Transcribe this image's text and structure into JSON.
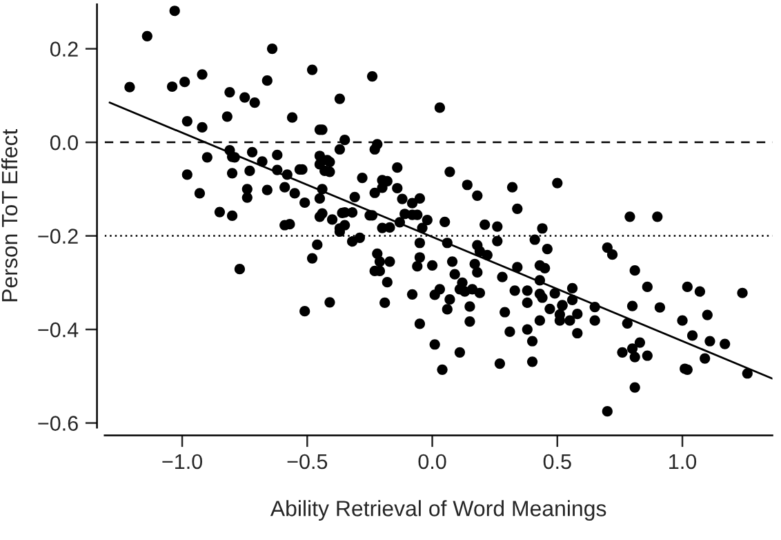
{
  "chart_data": {
    "type": "scatter",
    "xlabel": "Ability Retrieval of Word Meanings",
    "ylabel": "Person ToT Effect",
    "xlim": [
      -1.31,
      1.36
    ],
    "ylim": [
      -0.61,
      0.295
    ],
    "xticks": [
      {
        "value": -1.0,
        "label": "−1.0"
      },
      {
        "value": -0.5,
        "label": "−0.5"
      },
      {
        "value": 0.0,
        "label": "0.0"
      },
      0.5,
      {
        "value": 1.0,
        "label": "1.0"
      }
    ],
    "yticks": [
      {
        "value": -0.6,
        "label": "−0.6"
      },
      {
        "value": -0.4,
        "label": "−0.4"
      },
      {
        "value": -0.2,
        "label": "−0.2"
      },
      {
        "value": 0.0,
        "label": "0.0"
      },
      0.2
    ],
    "grid": false,
    "marker": "circle",
    "ref_lines": [
      {
        "axis": "y",
        "value": 0.0,
        "line_style": "dashed",
        "color": "#000000"
      },
      {
        "axis": "y",
        "value": -0.2,
        "line_style": "dotted",
        "color": "#000000"
      }
    ],
    "series": [
      {
        "color": "#000000",
        "x": [
          -1.21,
          -1.14,
          -1.03,
          -1.04,
          -0.99,
          -0.92,
          -0.98,
          -0.92,
          -0.81,
          -0.82,
          -0.75,
          -0.71,
          -0.64,
          -0.66,
          -0.48,
          -0.56,
          -0.45,
          -0.44,
          -0.37,
          -0.37,
          -0.9,
          -0.98,
          -0.93,
          -0.85,
          -0.8,
          -0.81,
          -0.8,
          -0.79,
          -0.72,
          -0.8,
          -0.73,
          -0.68,
          -0.62,
          -0.62,
          -0.58,
          -0.53,
          -0.52,
          -0.74,
          -0.74,
          -0.66,
          -0.59,
          -0.55,
          -0.51,
          -0.45,
          -0.42,
          -0.45,
          -0.43,
          -0.44,
          -0.45,
          -0.44,
          -0.45,
          -0.4,
          -0.59,
          -0.57,
          -0.36,
          -0.37,
          -0.24,
          0.03,
          -0.35,
          -0.22,
          -0.23,
          -0.41,
          -0.41,
          -0.14,
          -0.28,
          -0.2,
          -0.18,
          -0.2,
          -0.23,
          -0.14,
          -0.12,
          -0.08,
          -0.05,
          -0.31,
          -0.35,
          -0.32,
          -0.25,
          -0.24,
          -0.11,
          -0.08,
          -0.06,
          -0.02,
          -0.35,
          -0.37,
          -0.2,
          -0.17,
          -0.13,
          -0.04,
          0.05,
          0.07,
          0.14,
          0.18,
          0.32,
          0.34,
          0.21,
          0.26,
          0.5,
          0.44,
          -0.32,
          -0.29,
          -0.22,
          -0.21,
          -0.17,
          -0.23,
          -0.21,
          -0.18,
          -0.19,
          -0.05,
          -0.05,
          -0.06,
          -0.08,
          -0.05,
          0.0,
          0.06,
          0.08,
          0.09,
          0.12,
          0.11,
          0.13,
          0.16,
          0.19,
          0.03,
          0.01,
          0.07,
          0.06,
          0.15,
          0.15,
          0.01,
          0.11,
          0.04,
          0.18,
          0.19,
          0.22,
          0.17,
          0.18,
          0.26,
          0.41,
          0.46,
          0.43,
          0.45,
          0.34,
          0.28,
          0.43,
          0.33,
          0.38,
          0.43,
          0.44,
          0.38,
          0.29,
          0.47,
          0.49,
          0.52,
          0.51,
          0.51,
          0.43,
          0.31,
          0.38,
          0.4,
          0.27,
          0.4,
          0.79,
          0.9,
          0.7,
          0.72,
          0.81,
          0.86,
          1.02,
          1.07,
          1.24,
          0.56,
          0.52,
          0.56,
          0.55,
          0.58,
          0.58,
          0.65,
          0.65,
          0.8,
          0.91,
          0.78,
          1.0,
          1.1,
          1.04,
          1.11,
          1.17,
          0.76,
          0.8,
          0.83,
          0.81,
          0.86,
          1.09,
          1.01,
          1.02,
          1.26,
          0.81,
          0.7,
          -0.46,
          -0.48,
          -0.77,
          -0.51,
          -0.41
        ],
        "values": [
          0.118,
          0.227,
          0.281,
          0.119,
          0.129,
          0.145,
          0.045,
          0.032,
          0.107,
          0.055,
          0.096,
          0.085,
          0.2,
          0.132,
          0.155,
          0.053,
          0.027,
          0.027,
          0.093,
          -0.015,
          -0.032,
          -0.069,
          -0.109,
          -0.149,
          -0.157,
          -0.017,
          -0.031,
          -0.032,
          -0.021,
          -0.066,
          -0.061,
          -0.041,
          -0.027,
          -0.059,
          -0.069,
          -0.058,
          -0.058,
          -0.1,
          -0.118,
          -0.102,
          -0.096,
          -0.109,
          -0.129,
          -0.029,
          -0.038,
          -0.047,
          -0.061,
          -0.1,
          -0.12,
          -0.152,
          -0.159,
          -0.165,
          -0.177,
          -0.175,
          -0.151,
          -0.184,
          0.141,
          0.074,
          0.005,
          -0.004,
          -0.015,
          -0.042,
          -0.063,
          -0.054,
          -0.076,
          -0.081,
          -0.083,
          -0.097,
          -0.108,
          -0.098,
          -0.121,
          -0.13,
          -0.12,
          -0.117,
          -0.15,
          -0.15,
          -0.156,
          -0.156,
          -0.153,
          -0.155,
          -0.155,
          -0.166,
          -0.177,
          -0.191,
          -0.183,
          -0.182,
          -0.171,
          -0.183,
          -0.17,
          -0.063,
          -0.091,
          -0.114,
          -0.096,
          -0.142,
          -0.176,
          -0.18,
          -0.087,
          -0.184,
          -0.212,
          -0.204,
          -0.238,
          -0.255,
          -0.255,
          -0.275,
          -0.275,
          -0.299,
          -0.343,
          -0.215,
          -0.246,
          -0.265,
          -0.325,
          -0.388,
          -0.263,
          -0.215,
          -0.255,
          -0.282,
          -0.3,
          -0.314,
          -0.319,
          -0.314,
          -0.322,
          -0.314,
          -0.326,
          -0.336,
          -0.357,
          -0.351,
          -0.383,
          -0.432,
          -0.449,
          -0.486,
          -0.22,
          -0.233,
          -0.241,
          -0.26,
          -0.278,
          -0.211,
          -0.208,
          -0.228,
          -0.263,
          -0.269,
          -0.267,
          -0.288,
          -0.295,
          -0.317,
          -0.317,
          -0.324,
          -0.332,
          -0.343,
          -0.363,
          -0.356,
          -0.323,
          -0.349,
          -0.368,
          -0.381,
          -0.381,
          -0.405,
          -0.4,
          -0.425,
          -0.473,
          -0.469,
          -0.159,
          -0.159,
          -0.225,
          -0.24,
          -0.274,
          -0.309,
          -0.309,
          -0.319,
          -0.322,
          -0.312,
          -0.348,
          -0.337,
          -0.381,
          -0.367,
          -0.408,
          -0.352,
          -0.381,
          -0.35,
          -0.353,
          -0.387,
          -0.381,
          -0.369,
          -0.413,
          -0.425,
          -0.431,
          -0.449,
          -0.441,
          -0.428,
          -0.459,
          -0.456,
          -0.462,
          -0.484,
          -0.486,
          -0.494,
          -0.524,
          -0.575,
          -0.219,
          -0.248,
          -0.271,
          -0.361,
          -0.342
        ]
      },
      {
        "type": "line",
        "color": "#000000",
        "marker": "none",
        "line_style": "solid",
        "x": [
          -1.29,
          1.36
        ],
        "values": [
          0.085,
          -0.505
        ]
      }
    ]
  }
}
